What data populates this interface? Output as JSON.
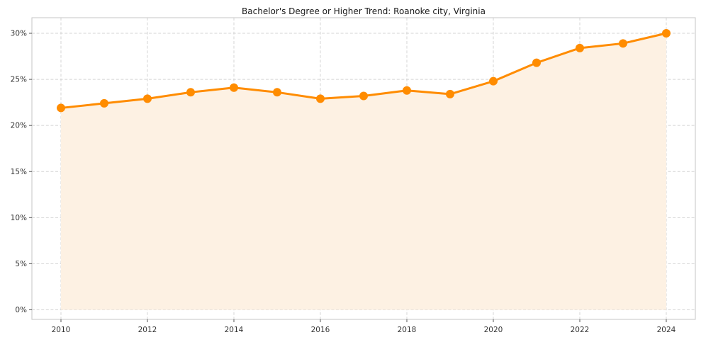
{
  "chart_data": {
    "type": "line",
    "title": "Bachelor's Degree or Higher Trend: Roanoke city, Virginia",
    "x": [
      2010,
      2011,
      2012,
      2013,
      2014,
      2015,
      2016,
      2017,
      2018,
      2019,
      2020,
      2021,
      2022,
      2023,
      2024
    ],
    "values": [
      21.9,
      22.4,
      22.9,
      23.6,
      24.1,
      23.6,
      22.9,
      23.2,
      23.8,
      23.4,
      24.8,
      26.8,
      28.4,
      28.9,
      30.0
    ],
    "unit": "%",
    "xlabel": "",
    "ylabel": "",
    "ylim": [
      0,
      30
    ],
    "y_tick_values": [
      0,
      5,
      10,
      15,
      20,
      25,
      30
    ],
    "y_ticks": [
      "0%",
      "5%",
      "10%",
      "15%",
      "20%",
      "25%",
      "30%"
    ],
    "x_tick_values": [
      2010,
      2012,
      2014,
      2016,
      2018,
      2020,
      2022,
      2024
    ],
    "x_ticks": [
      "2010",
      "2012",
      "2014",
      "2016",
      "2018",
      "2020",
      "2022",
      "2024"
    ],
    "grid": "dashed",
    "legend": "none",
    "marker": "circle",
    "fill": "area",
    "line_color": "#ff8c00",
    "fill_color": "#fdf1e3",
    "grid_color": "#d4d4d4",
    "border_color": "#c4c4c4",
    "tick_color": "#555555",
    "tick_label_color": "#333333"
  }
}
